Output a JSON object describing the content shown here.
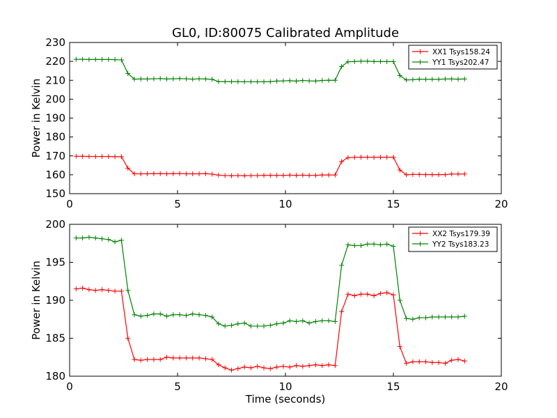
{
  "title": "GL0, ID:80075 Calibrated Amplitude",
  "chart_data": [
    {
      "type": "line",
      "ylabel": "Power in Kelvin",
      "xlabel": "",
      "xlim": [
        0,
        20
      ],
      "ylim": [
        150,
        230
      ],
      "xticks": [
        0,
        5,
        10,
        15,
        20
      ],
      "yticks": [
        150,
        160,
        170,
        180,
        190,
        200,
        210,
        220,
        230
      ],
      "legend_position": "top-right",
      "grid": false,
      "x": [
        0.3,
        0.6,
        0.9,
        1.2,
        1.5,
        1.8,
        2.1,
        2.4,
        2.7,
        3.0,
        3.3,
        3.6,
        3.9,
        4.2,
        4.5,
        4.8,
        5.1,
        5.4,
        5.7,
        6.0,
        6.3,
        6.6,
        6.9,
        7.2,
        7.5,
        7.8,
        8.1,
        8.4,
        8.7,
        9.0,
        9.3,
        9.6,
        9.9,
        10.2,
        10.5,
        10.8,
        11.1,
        11.4,
        11.7,
        12.0,
        12.3,
        12.6,
        12.9,
        13.2,
        13.5,
        13.8,
        14.1,
        14.4,
        14.7,
        15.0,
        15.3,
        15.6,
        15.9,
        16.2,
        16.5,
        16.8,
        17.1,
        17.4,
        17.7,
        18.0,
        18.3
      ],
      "series": [
        {
          "name": "XX1 Tsys158.24",
          "color": "#ff0000",
          "values": [
            169.8,
            169.8,
            169.7,
            169.7,
            169.7,
            169.7,
            169.6,
            169.6,
            163.5,
            160.5,
            160.5,
            160.5,
            160.6,
            160.6,
            160.5,
            160.6,
            160.7,
            160.5,
            160.5,
            160.5,
            160.6,
            160.3,
            159.8,
            159.6,
            159.5,
            159.6,
            159.5,
            159.6,
            159.6,
            159.7,
            159.7,
            159.7,
            159.7,
            159.8,
            159.7,
            159.8,
            159.7,
            159.7,
            159.9,
            159.9,
            159.9,
            167.0,
            169.1,
            169.2,
            169.3,
            169.3,
            169.2,
            169.3,
            169.3,
            169.3,
            162.5,
            160.0,
            160.2,
            160.2,
            160.1,
            160.1,
            160.1,
            160.1,
            160.4,
            160.4,
            160.4
          ]
        },
        {
          "name": "YY1 Tsys202.47",
          "color": "#008000",
          "values": [
            221.1,
            221.1,
            221.0,
            221.0,
            221.0,
            221.0,
            220.9,
            220.8,
            213.6,
            210.6,
            210.7,
            210.7,
            210.8,
            210.9,
            210.7,
            210.8,
            210.9,
            210.8,
            210.6,
            210.8,
            210.7,
            210.5,
            209.3,
            209.3,
            209.3,
            209.3,
            209.2,
            209.2,
            209.2,
            209.2,
            209.3,
            209.6,
            209.7,
            209.8,
            209.6,
            209.9,
            209.7,
            209.6,
            209.9,
            210.0,
            210.0,
            217.3,
            219.8,
            219.9,
            220.1,
            220.1,
            219.9,
            219.9,
            219.9,
            219.9,
            212.5,
            210.2,
            210.3,
            210.6,
            210.5,
            210.5,
            210.5,
            210.7,
            210.7,
            210.6,
            210.7
          ]
        }
      ]
    },
    {
      "type": "line",
      "ylabel": "Power in Kelvin",
      "xlabel": "Time (seconds)",
      "xlim": [
        0,
        20
      ],
      "ylim": [
        180,
        200
      ],
      "xticks": [
        0,
        5,
        10,
        15,
        20
      ],
      "yticks": [
        180,
        185,
        190,
        195,
        200
      ],
      "legend_position": "top-right",
      "grid": false,
      "x": [
        0.3,
        0.6,
        0.9,
        1.2,
        1.5,
        1.8,
        2.1,
        2.4,
        2.7,
        3.0,
        3.3,
        3.6,
        3.9,
        4.2,
        4.5,
        4.8,
        5.1,
        5.4,
        5.7,
        6.0,
        6.3,
        6.6,
        6.9,
        7.2,
        7.5,
        7.8,
        8.1,
        8.4,
        8.7,
        9.0,
        9.3,
        9.6,
        9.9,
        10.2,
        10.5,
        10.8,
        11.1,
        11.4,
        11.7,
        12.0,
        12.3,
        12.6,
        12.9,
        13.2,
        13.5,
        13.8,
        14.1,
        14.4,
        14.7,
        15.0,
        15.3,
        15.6,
        15.9,
        16.2,
        16.5,
        16.8,
        17.1,
        17.4,
        17.7,
        18.0,
        18.3
      ],
      "series": [
        {
          "name": "XX2 Tsys179.39",
          "color": "#ff0000",
          "values": [
            191.5,
            191.6,
            191.4,
            191.3,
            191.4,
            191.3,
            191.2,
            191.2,
            185.0,
            182.2,
            182.1,
            182.2,
            182.2,
            182.2,
            182.5,
            182.4,
            182.4,
            182.4,
            182.4,
            182.4,
            182.3,
            182.2,
            181.5,
            181.1,
            180.8,
            181.0,
            181.2,
            181.1,
            181.3,
            181.1,
            181.0,
            181.2,
            181.3,
            181.2,
            181.4,
            181.3,
            181.4,
            181.5,
            181.4,
            181.5,
            181.4,
            188.5,
            190.8,
            190.6,
            190.8,
            190.8,
            190.6,
            190.9,
            191.0,
            190.7,
            183.9,
            181.7,
            181.9,
            181.9,
            181.9,
            181.8,
            181.8,
            181.7,
            182.1,
            182.2,
            182.0
          ]
        },
        {
          "name": "YY2 Tsys183.23",
          "color": "#008000",
          "values": [
            198.2,
            198.2,
            198.3,
            198.2,
            198.1,
            198.0,
            197.7,
            197.9,
            191.3,
            188.1,
            187.9,
            188.0,
            188.2,
            188.2,
            187.9,
            188.1,
            188.1,
            188.0,
            188.2,
            188.1,
            188.0,
            187.8,
            186.9,
            186.6,
            186.7,
            186.9,
            187.0,
            186.6,
            186.6,
            186.6,
            186.7,
            186.9,
            187.0,
            187.3,
            187.2,
            187.3,
            187.0,
            187.2,
            187.3,
            187.3,
            187.2,
            194.6,
            197.3,
            197.2,
            197.2,
            197.4,
            197.4,
            197.3,
            197.4,
            197.1,
            190.0,
            187.6,
            187.5,
            187.7,
            187.7,
            187.8,
            187.8,
            187.8,
            187.8,
            187.8,
            187.9
          ]
        }
      ]
    }
  ]
}
